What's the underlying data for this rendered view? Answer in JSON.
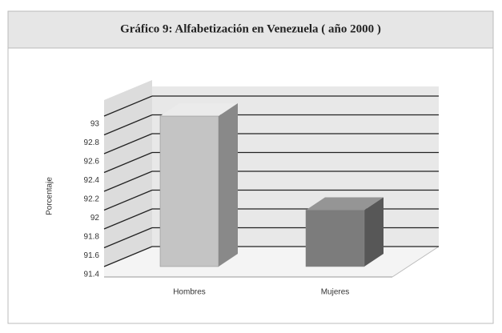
{
  "chart_data": {
    "type": "bar3d",
    "title": "Gráfico 9: Alfabetización en Venezuela ( año 2000 )",
    "y_label": "Porcentaje",
    "categories": [
      "Hombres",
      "Mujeres"
    ],
    "values": [
      93,
      92
    ],
    "colors": [
      "#c4c4c4",
      "#7c7c7c"
    ],
    "ylim": [
      91.4,
      93
    ],
    "yticks": [
      91.4,
      91.6,
      91.8,
      92,
      92.2,
      92.4,
      92.6,
      92.8,
      93
    ],
    "grid": true
  }
}
